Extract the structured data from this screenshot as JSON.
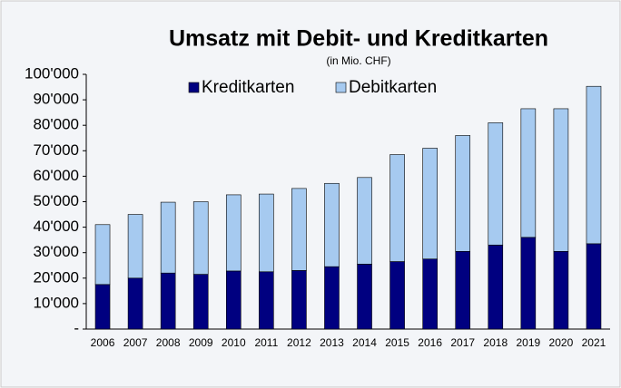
{
  "chart_data": {
    "type": "stacked-bar",
    "title": "Umsatz mit Debit- und Kreditkarten",
    "subtitle": "(in Mio. CHF)",
    "categories": [
      "2006",
      "2007",
      "2008",
      "2009",
      "2010",
      "2011",
      "2012",
      "2013",
      "2014",
      "2015",
      "2016",
      "2017",
      "2018",
      "2019",
      "2020",
      "2021"
    ],
    "series": [
      {
        "name": "Kreditkarten",
        "color": "#000080",
        "values": [
          17500,
          20000,
          22000,
          21500,
          22800,
          22500,
          23000,
          24500,
          25500,
          26500,
          27500,
          30500,
          33000,
          36000,
          30500,
          33500
        ]
      },
      {
        "name": "Debitkarten",
        "color": "#a6caf0",
        "values": [
          23500,
          25000,
          27800,
          28500,
          29900,
          30500,
          32200,
          32700,
          34000,
          42000,
          43500,
          45500,
          48000,
          50500,
          56000,
          61800
        ]
      }
    ],
    "ylim": [
      0,
      100000
    ],
    "yticks": [
      {
        "value": 0,
        "label": "-"
      },
      {
        "value": 10000,
        "label": "10'000"
      },
      {
        "value": 20000,
        "label": "20'000"
      },
      {
        "value": 30000,
        "label": "30'000"
      },
      {
        "value": 40000,
        "label": "40'000"
      },
      {
        "value": 50000,
        "label": "50'000"
      },
      {
        "value": 60000,
        "label": "60'000"
      },
      {
        "value": 70000,
        "label": "70'000"
      },
      {
        "value": 80000,
        "label": "80'000"
      },
      {
        "value": 90000,
        "label": "90'000"
      },
      {
        "value": 100000,
        "label": "100'000"
      }
    ],
    "legend": "top"
  }
}
